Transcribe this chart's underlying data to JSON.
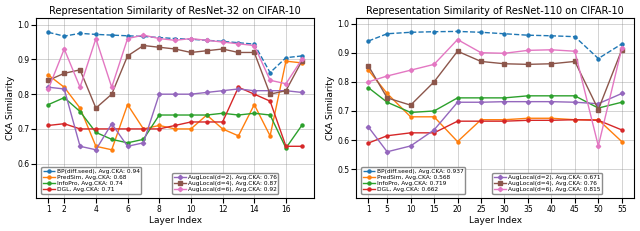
{
  "title1": "Representation Similarity of ResNet-32 on CIFAR-10",
  "title2": "Representation Similarity of ResNet-110 on CIFAR-10",
  "ylabel": "CKA Similarity",
  "xlabel": "Layer Index",
  "resnet32": {
    "x": [
      1,
      2,
      3,
      4,
      5,
      6,
      7,
      8,
      9,
      10,
      11,
      12,
      13,
      14,
      15,
      16,
      17
    ],
    "BP": [
      0.978,
      0.967,
      0.975,
      0.972,
      0.97,
      0.968,
      0.966,
      0.963,
      0.96,
      0.958,
      0.955,
      0.952,
      0.948,
      0.944,
      0.862,
      0.905,
      0.91
    ],
    "PredSim": [
      0.855,
      0.82,
      0.76,
      0.65,
      0.64,
      0.77,
      0.7,
      0.71,
      0.7,
      0.7,
      0.74,
      0.7,
      0.68,
      0.77,
      0.68,
      0.895,
      0.89
    ],
    "InfoPro": [
      0.77,
      0.79,
      0.75,
      0.69,
      0.67,
      0.66,
      0.67,
      0.74,
      0.74,
      0.74,
      0.74,
      0.745,
      0.74,
      0.745,
      0.74,
      0.645,
      0.71
    ],
    "DGL": [
      0.71,
      0.715,
      0.7,
      0.7,
      0.7,
      0.7,
      0.7,
      0.7,
      0.71,
      0.72,
      0.72,
      0.72,
      0.82,
      0.8,
      0.78,
      0.65,
      0.65
    ],
    "AugLocal2": [
      0.82,
      0.815,
      0.65,
      0.64,
      0.715,
      0.65,
      0.66,
      0.8,
      0.8,
      0.8,
      0.805,
      0.81,
      0.815,
      0.81,
      0.81,
      0.81,
      0.805
    ],
    "AugLocal4": [
      0.84,
      0.86,
      0.87,
      0.76,
      0.8,
      0.91,
      0.94,
      0.935,
      0.93,
      0.92,
      0.925,
      0.93,
      0.92,
      0.92,
      0.8,
      0.81,
      0.895
    ],
    "AugLocal6": [
      0.815,
      0.93,
      0.82,
      0.96,
      0.82,
      0.96,
      0.97,
      0.96,
      0.955,
      0.96,
      0.955,
      0.95,
      0.945,
      0.94,
      0.84,
      0.83,
      0.9
    ]
  },
  "resnet110": {
    "x": [
      1,
      5,
      10,
      15,
      20,
      25,
      30,
      35,
      40,
      45,
      50,
      55
    ],
    "BP": [
      0.94,
      0.965,
      0.97,
      0.972,
      0.973,
      0.97,
      0.965,
      0.96,
      0.958,
      0.955,
      0.88,
      0.93
    ],
    "PredSim": [
      0.84,
      0.76,
      0.68,
      0.68,
      0.595,
      0.67,
      0.67,
      0.675,
      0.675,
      0.67,
      0.67,
      0.595
    ],
    "InfoPro": [
      0.78,
      0.73,
      0.695,
      0.7,
      0.745,
      0.745,
      0.745,
      0.752,
      0.752,
      0.752,
      0.71,
      0.73
    ],
    "DGL": [
      0.59,
      0.615,
      0.625,
      0.625,
      0.665,
      0.665,
      0.665,
      0.668,
      0.668,
      0.67,
      0.668,
      0.635
    ],
    "AugLocal2": [
      0.645,
      0.56,
      0.58,
      0.635,
      0.73,
      0.73,
      0.732,
      0.732,
      0.732,
      0.73,
      0.725,
      0.76
    ],
    "AugLocal4": [
      0.855,
      0.745,
      0.72,
      0.8,
      0.905,
      0.87,
      0.862,
      0.86,
      0.862,
      0.87,
      0.705,
      0.91
    ],
    "AugLocal6": [
      0.8,
      0.82,
      0.84,
      0.86,
      0.945,
      0.9,
      0.898,
      0.908,
      0.91,
      0.905,
      0.58,
      0.915
    ]
  },
  "colors": {
    "BP": "#1f77b4",
    "PredSim": "#ff7f0e",
    "InfoPro": "#2ca02c",
    "DGL": "#d62728",
    "AugLocal2": "#9467bd",
    "AugLocal4": "#8c564b",
    "AugLocal6": "#e377c2"
  },
  "legend1": {
    "BP": "BP(diff.seed), Avg.CKA: 0.94",
    "PredSim": "PredSim, Avg.CKA: 0.68",
    "InfoPro": "InfoPro, Avg.CKA: 0.74",
    "DGL": "DGL, Avg.CKA: 0.71",
    "AugLocal2": "AugLocal(d=2), Avg.CKA: 0.76",
    "AugLocal4": "AugLocal(d=4), Avg.CKA: 0.87",
    "AugLocal6": "AugLocal(d=6), Avg.CKA: 0.92"
  },
  "legend2": {
    "BP": "BP(diff.seed), Avg.CKA: 0.937",
    "PredSim": "PredSim, Avg.CKA: 0.568",
    "InfoPro": "InfoPro, Avg.CKA: 0.719",
    "DGL": "DGL, Avg.CKA: 0.662",
    "AugLocal2": "AugLocal(d=2), Avg.CKA: 0.671",
    "AugLocal4": "AugLocal(d=4), Avg.CKA: 0.76",
    "AugLocal6": "AugLocal(d=6), Avg.CKA: 0.815"
  },
  "ylim1": [
    0.5,
    1.02
  ],
  "ylim2": [
    0.4,
    1.02
  ],
  "yticks1": [
    0.6,
    0.7,
    0.8,
    0.9,
    1.0
  ],
  "yticks2": [
    0.5,
    0.6,
    0.7,
    0.8,
    0.9,
    1.0
  ],
  "xticks1": [
    1,
    2,
    4,
    6,
    8,
    10,
    12,
    14,
    16
  ],
  "xticks2": [
    1,
    5,
    10,
    15,
    20,
    25,
    30,
    35,
    40,
    45,
    50,
    55
  ],
  "markers": {
    "BP": "o",
    "PredSim": "o",
    "InfoPro": "o",
    "DGL": "o",
    "AugLocal2": "D",
    "AugLocal4": "s",
    "AugLocal6": "D"
  },
  "linestyles": {
    "BP": "--",
    "PredSim": "-",
    "InfoPro": "-",
    "DGL": "-",
    "AugLocal2": "-",
    "AugLocal4": "-",
    "AugLocal6": "-"
  },
  "figsize": [
    6.4,
    2.31
  ],
  "dpi": 100,
  "title_fontsize": 7.0,
  "label_fontsize": 6.5,
  "tick_fontsize": 5.5,
  "legend_fontsize": 4.2,
  "linewidth": 1.0,
  "markersize": 2.2
}
